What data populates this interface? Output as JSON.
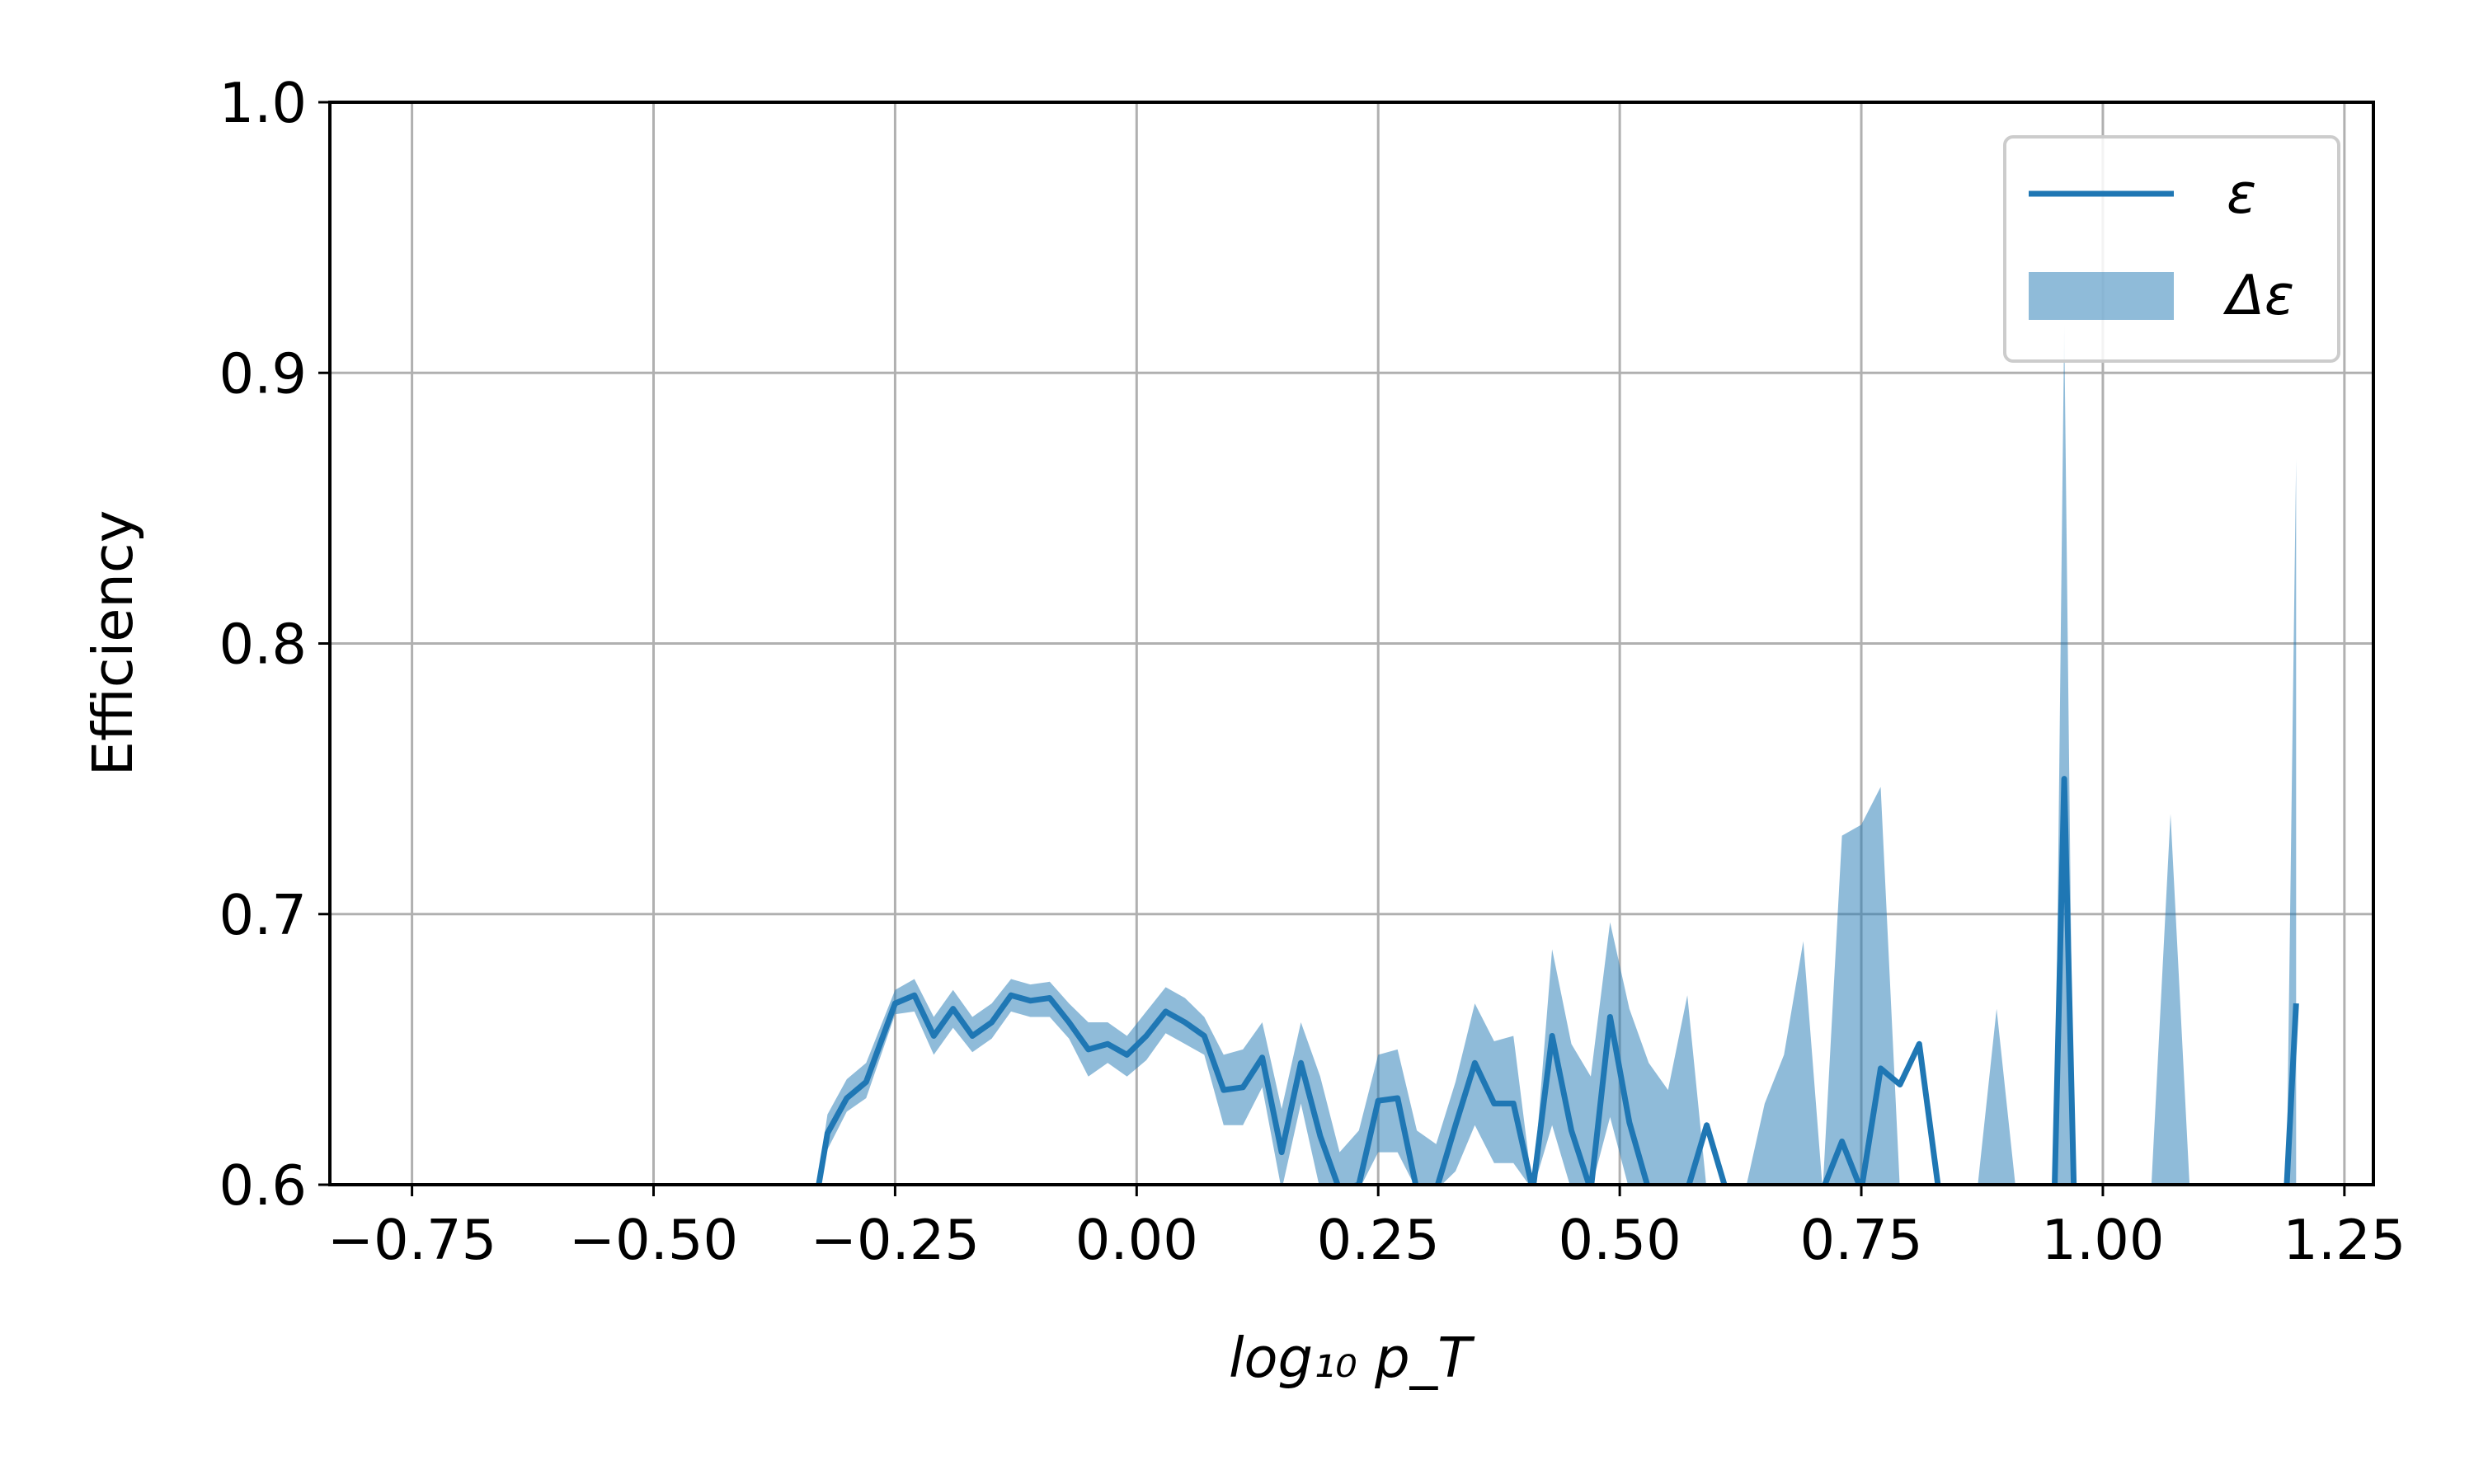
{
  "chart_data": {
    "type": "line",
    "xlabel": "log₁₀ p_T",
    "ylabel": "Efficiency",
    "xlim": [
      -0.835,
      1.28
    ],
    "ylim": [
      0.6,
      1.0
    ],
    "grid": true,
    "legend_placement": "top-right",
    "x_ticks": [
      "−0.75",
      "−0.50",
      "−0.25",
      "0.00",
      "0.25",
      "0.50",
      "0.75",
      "1.00",
      "1.25"
    ],
    "y_ticks": [
      "0.6",
      "0.7",
      "0.8",
      "0.9",
      "1.0"
    ],
    "colors": {
      "line": "#1f77b4",
      "band": "#1f77b4",
      "grid": "#b0b0b0"
    },
    "series": [
      {
        "name": "ε",
        "band_name": "Δε",
        "x": [
          -0.33,
          -0.32,
          -0.3,
          -0.28,
          -0.25,
          -0.23,
          -0.21,
          -0.19,
          -0.17,
          -0.15,
          -0.13,
          -0.11,
          -0.09,
          -0.07,
          -0.05,
          -0.03,
          -0.01,
          0.01,
          0.03,
          0.05,
          0.07,
          0.09,
          0.11,
          0.13,
          0.15,
          0.17,
          0.19,
          0.21,
          0.23,
          0.25,
          0.27,
          0.29,
          0.31,
          0.33,
          0.35,
          0.37,
          0.39,
          0.41,
          0.43,
          0.45,
          0.47,
          0.49,
          0.51,
          0.53,
          0.55,
          0.57,
          0.59,
          0.61,
          0.63,
          0.65,
          0.67,
          0.69,
          0.71,
          0.73,
          0.75,
          0.77,
          0.79,
          0.81,
          0.83,
          0.85,
          0.87,
          0.89,
          0.91,
          0.93,
          0.95,
          0.96,
          0.97,
          0.99,
          1.01,
          1.03,
          1.05,
          1.07,
          1.09,
          1.11,
          1.13,
          1.15,
          1.17,
          1.19,
          1.2
        ],
        "y": [
          0.598,
          0.619,
          0.632,
          0.638,
          0.667,
          0.67,
          0.655,
          0.665,
          0.655,
          0.66,
          0.67,
          0.668,
          0.669,
          0.66,
          0.65,
          0.652,
          0.648,
          0.655,
          0.664,
          0.66,
          0.655,
          0.635,
          0.636,
          0.647,
          0.612,
          0.645,
          0.618,
          0.598,
          0.6,
          0.631,
          0.632,
          0.598,
          0.598,
          0.622,
          0.645,
          0.63,
          0.63,
          0.598,
          0.655,
          0.62,
          0.598,
          0.662,
          0.623,
          0.598,
          0.598,
          0.598,
          0.622,
          0.598,
          0.598,
          0.598,
          0.598,
          0.598,
          0.598,
          0.616,
          0.598,
          0.643,
          0.637,
          0.652,
          0.598,
          0.598,
          0.598,
          0.598,
          0.598,
          0.598,
          0.598,
          0.75,
          0.598,
          0.598,
          0.598,
          0.598,
          0.598,
          0.598,
          0.598,
          0.598,
          0.598,
          0.598,
          0.598,
          0.598,
          0.667
        ],
        "lower": [
          0.598,
          0.613,
          0.627,
          0.632,
          0.663,
          0.664,
          0.648,
          0.658,
          0.649,
          0.654,
          0.664,
          0.662,
          0.662,
          0.654,
          0.64,
          0.645,
          0.64,
          0.646,
          0.656,
          0.652,
          0.648,
          0.622,
          0.622,
          0.636,
          0.598,
          0.63,
          0.598,
          0.598,
          0.598,
          0.612,
          0.612,
          0.598,
          0.598,
          0.605,
          0.622,
          0.608,
          0.608,
          0.598,
          0.622,
          0.598,
          0.598,
          0.625,
          0.598,
          0.598,
          0.598,
          0.598,
          0.598,
          0.598,
          0.598,
          0.598,
          0.598,
          0.598,
          0.598,
          0.598,
          0.598,
          0.598,
          0.598,
          0.598,
          0.598,
          0.598,
          0.598,
          0.598,
          0.598,
          0.598,
          0.598,
          0.598,
          0.598,
          0.598,
          0.598,
          0.598,
          0.598,
          0.598,
          0.598,
          0.598,
          0.598,
          0.598,
          0.598,
          0.598,
          0.598
        ],
        "upper": [
          0.602,
          0.626,
          0.639,
          0.645,
          0.672,
          0.676,
          0.662,
          0.672,
          0.662,
          0.667,
          0.676,
          0.674,
          0.675,
          0.667,
          0.66,
          0.66,
          0.655,
          0.664,
          0.673,
          0.669,
          0.662,
          0.648,
          0.65,
          0.66,
          0.628,
          0.66,
          0.64,
          0.612,
          0.62,
          0.648,
          0.65,
          0.62,
          0.615,
          0.638,
          0.667,
          0.653,
          0.655,
          0.598,
          0.687,
          0.652,
          0.64,
          0.697,
          0.665,
          0.645,
          0.635,
          0.67,
          0.598,
          0.598,
          0.598,
          0.63,
          0.648,
          0.69,
          0.598,
          0.729,
          0.733,
          0.747,
          0.598,
          0.598,
          0.598,
          0.598,
          0.598,
          0.665,
          0.598,
          0.598,
          0.598,
          0.918,
          0.598,
          0.598,
          0.598,
          0.598,
          0.598,
          0.737,
          0.598,
          0.598,
          0.598,
          0.598,
          0.598,
          0.598,
          0.868
        ]
      }
    ]
  }
}
